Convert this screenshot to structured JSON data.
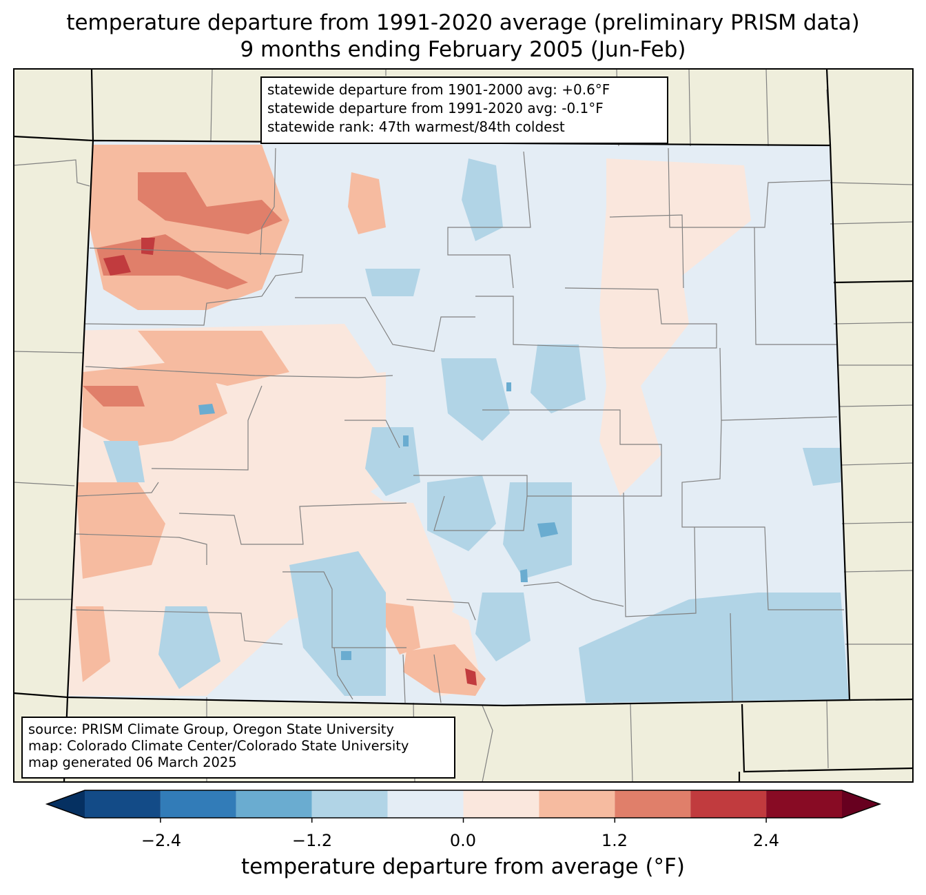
{
  "title": {
    "line1": "temperature departure from 1991-2020 average (preliminary PRISM data)",
    "line2": "9 months ending February 2005 (Jun-Feb)"
  },
  "stats": {
    "line1": "statewide departure from 1901-2000 avg: +0.6°F",
    "line2": "statewide departure from 1991-2020 avg: -0.1°F",
    "line3": "statewide rank: 47th warmest/84th coldest"
  },
  "credits": {
    "line1": "source: PRISM Climate Group, Oregon State University",
    "line2": "map: Colorado Climate Center/Colorado State University",
    "line3": "map generated 06 March 2025"
  },
  "colorbar": {
    "label": "temperature departure from average (°F)",
    "ticks": [
      "−2.4",
      "−1.2",
      "0.0",
      "1.2",
      "2.4"
    ],
    "bins": [
      {
        "from": -3.0,
        "to": -2.4,
        "color": "#134b87"
      },
      {
        "from": -2.4,
        "to": -1.8,
        "color": "#327cb8"
      },
      {
        "from": -1.8,
        "to": -1.2,
        "color": "#6aacd0"
      },
      {
        "from": -1.2,
        "to": -0.6,
        "color": "#b1d4e6"
      },
      {
        "from": -0.6,
        "to": 0.0,
        "color": "#e4edf5"
      },
      {
        "from": 0.0,
        "to": 0.6,
        "color": "#fae7dd"
      },
      {
        "from": 0.6,
        "to": 1.2,
        "color": "#f6bba0"
      },
      {
        "from": 1.2,
        "to": 1.8,
        "color": "#e07f6a"
      },
      {
        "from": 1.8,
        "to": 2.4,
        "color": "#c13b3e"
      },
      {
        "from": 2.4,
        "to": 3.0,
        "color": "#880b24"
      }
    ],
    "under_color": "#053061",
    "over_color": "#67001f"
  },
  "colors": {
    "background_land": "#efeedc",
    "county_lines": "#808080",
    "state_lines": "#000000"
  }
}
